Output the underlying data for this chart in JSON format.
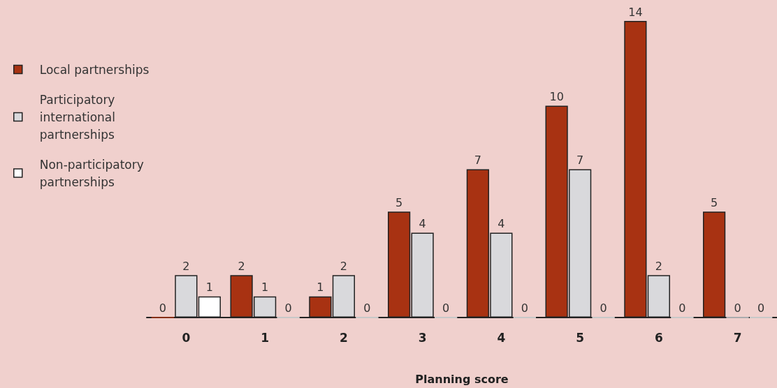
{
  "chart_data": {
    "type": "bar",
    "xlabel": "Planning score",
    "categories": [
      "0",
      "1",
      "2",
      "3",
      "4",
      "5",
      "6",
      "7"
    ],
    "series": [
      {
        "name": "Local partnerships",
        "color": "#a83212",
        "values": [
          0,
          2,
          1,
          5,
          7,
          10,
          14,
          5
        ]
      },
      {
        "name": "Participatory international partnerships",
        "color": "#d9d9dc",
        "values": [
          2,
          1,
          2,
          4,
          4,
          7,
          2,
          0
        ]
      },
      {
        "name": "Non-participatory partnerships",
        "color": "#ffffff",
        "values": [
          1,
          0,
          0,
          0,
          0,
          0,
          0,
          0
        ]
      }
    ],
    "data_labels": true,
    "legend": "top left"
  }
}
